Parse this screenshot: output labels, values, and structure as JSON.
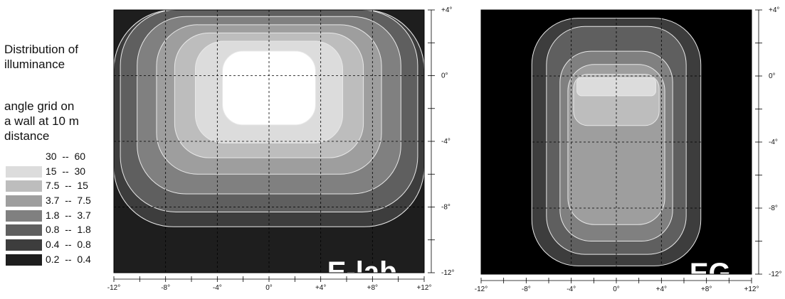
{
  "caption": {
    "line1": "Distribution of",
    "line2": "illuminance",
    "line3": "angle grid on",
    "line4": "a wall at 10 m",
    "line5": "distance"
  },
  "legend": [
    {
      "label": "30  --  60",
      "color": "#ffffff"
    },
    {
      "label": "15  --  30",
      "color": "#dcdcdc"
    },
    {
      "label": "7.5  --  15",
      "color": "#bdbdbd"
    },
    {
      "label": "3.7  --  7.5",
      "color": "#9e9e9e"
    },
    {
      "label": "1.8  --  3.7",
      "color": "#808080"
    },
    {
      "label": "0.8  --  1.8",
      "color": "#5f5f5f"
    },
    {
      "label": "0.4  --  0.8",
      "color": "#3d3d3d"
    },
    {
      "label": "0.2  --  0.4",
      "color": "#1e1e1e"
    }
  ],
  "chart_data": [
    {
      "type": "heatmap",
      "title": "",
      "overlay_label": "E-lab",
      "xlabel": "",
      "ylabel": "",
      "xlim": [
        -12,
        12
      ],
      "ylim": [
        -12,
        4
      ],
      "x_ticks": [
        -12,
        -8,
        -4,
        0,
        4,
        8,
        12
      ],
      "x_tick_labels": [
        "-12°",
        "-8°",
        "-4°",
        "0°",
        "+4°",
        "+8°",
        "+12°"
      ],
      "y_ticks": [
        4,
        0,
        -4,
        -8,
        -12
      ],
      "y_tick_labels": [
        "+4°",
        "0°",
        "-4°",
        "-8°",
        "-12°"
      ],
      "grid": true,
      "background_level": "0.2 -- 0.4",
      "contours": [
        {
          "range": "0.4 -- 0.8",
          "center": [
            0,
            1
          ],
          "half_width": 12,
          "top": 4,
          "bottom": -9.2
        },
        {
          "range": "0.8 -- 1.8",
          "center": [
            0,
            1
          ],
          "half_width": 11.5,
          "top": 4,
          "bottom": -8.3
        },
        {
          "range": "1.8 -- 3.7",
          "center": [
            0,
            0.8
          ],
          "half_width": 10.2,
          "top": 3.6,
          "bottom": -7.2
        },
        {
          "range": "3.7 -- 7.5",
          "center": [
            0,
            0.6
          ],
          "half_width": 8.7,
          "top": 3.1,
          "bottom": -6.0
        },
        {
          "range": "7.5 -- 15",
          "center": [
            0,
            0.4
          ],
          "half_width": 7.3,
          "top": 2.6,
          "bottom": -5.0
        },
        {
          "range": "15 -- 30",
          "center": [
            0,
            0.2
          ],
          "half_width": 5.7,
          "top": 2.1,
          "bottom": -4.1
        },
        {
          "range": "30 -- 60",
          "center": [
            0,
            0
          ],
          "half_width": 3.6,
          "top": 1.5,
          "bottom": -3.0
        }
      ]
    },
    {
      "type": "heatmap",
      "title": "",
      "overlay_label": "EG",
      "xlabel": "",
      "ylabel": "",
      "xlim": [
        -12,
        12
      ],
      "ylim": [
        -12,
        4
      ],
      "x_ticks": [
        -12,
        -8,
        -4,
        0,
        4,
        8,
        12
      ],
      "x_tick_labels": [
        "-12°",
        "-8°",
        "-4°",
        "0°",
        "+4°",
        "+8°",
        "+12°"
      ],
      "y_ticks": [
        4,
        0,
        -4,
        -8,
        -12
      ],
      "y_tick_labels": [
        "+4°",
        "0°",
        "-4°",
        "-8°",
        "-12°"
      ],
      "grid": true,
      "background_level": "0.2 -- 0.4",
      "contours": [
        {
          "range": "0.4 -- 0.8",
          "center": [
            0,
            -3
          ],
          "half_width": 7.5,
          "top": 3.5,
          "bottom": -11.5
        },
        {
          "range": "0.8 -- 1.8",
          "center": [
            0,
            -3
          ],
          "half_width": 6.2,
          "top": 3.0,
          "bottom": -10.8
        },
        {
          "range": "1.8 -- 3.7",
          "center": [
            0,
            -3
          ],
          "half_width": 5.0,
          "top": 1.5,
          "bottom": -10.0
        },
        {
          "range": "3.7 -- 7.5",
          "center": [
            0,
            -3
          ],
          "half_width": 4.3,
          "top": 0.7,
          "bottom": -9.0
        },
        {
          "range": "7.5 -- 15",
          "center": [
            0,
            -1
          ],
          "half_width": 3.8,
          "top": 0.1,
          "bottom": -3.0
        },
        {
          "range": "15 -- 30",
          "center": [
            0,
            -0.5
          ],
          "half_width": 3.5,
          "top": -0.1,
          "bottom": -1.2
        }
      ]
    }
  ]
}
